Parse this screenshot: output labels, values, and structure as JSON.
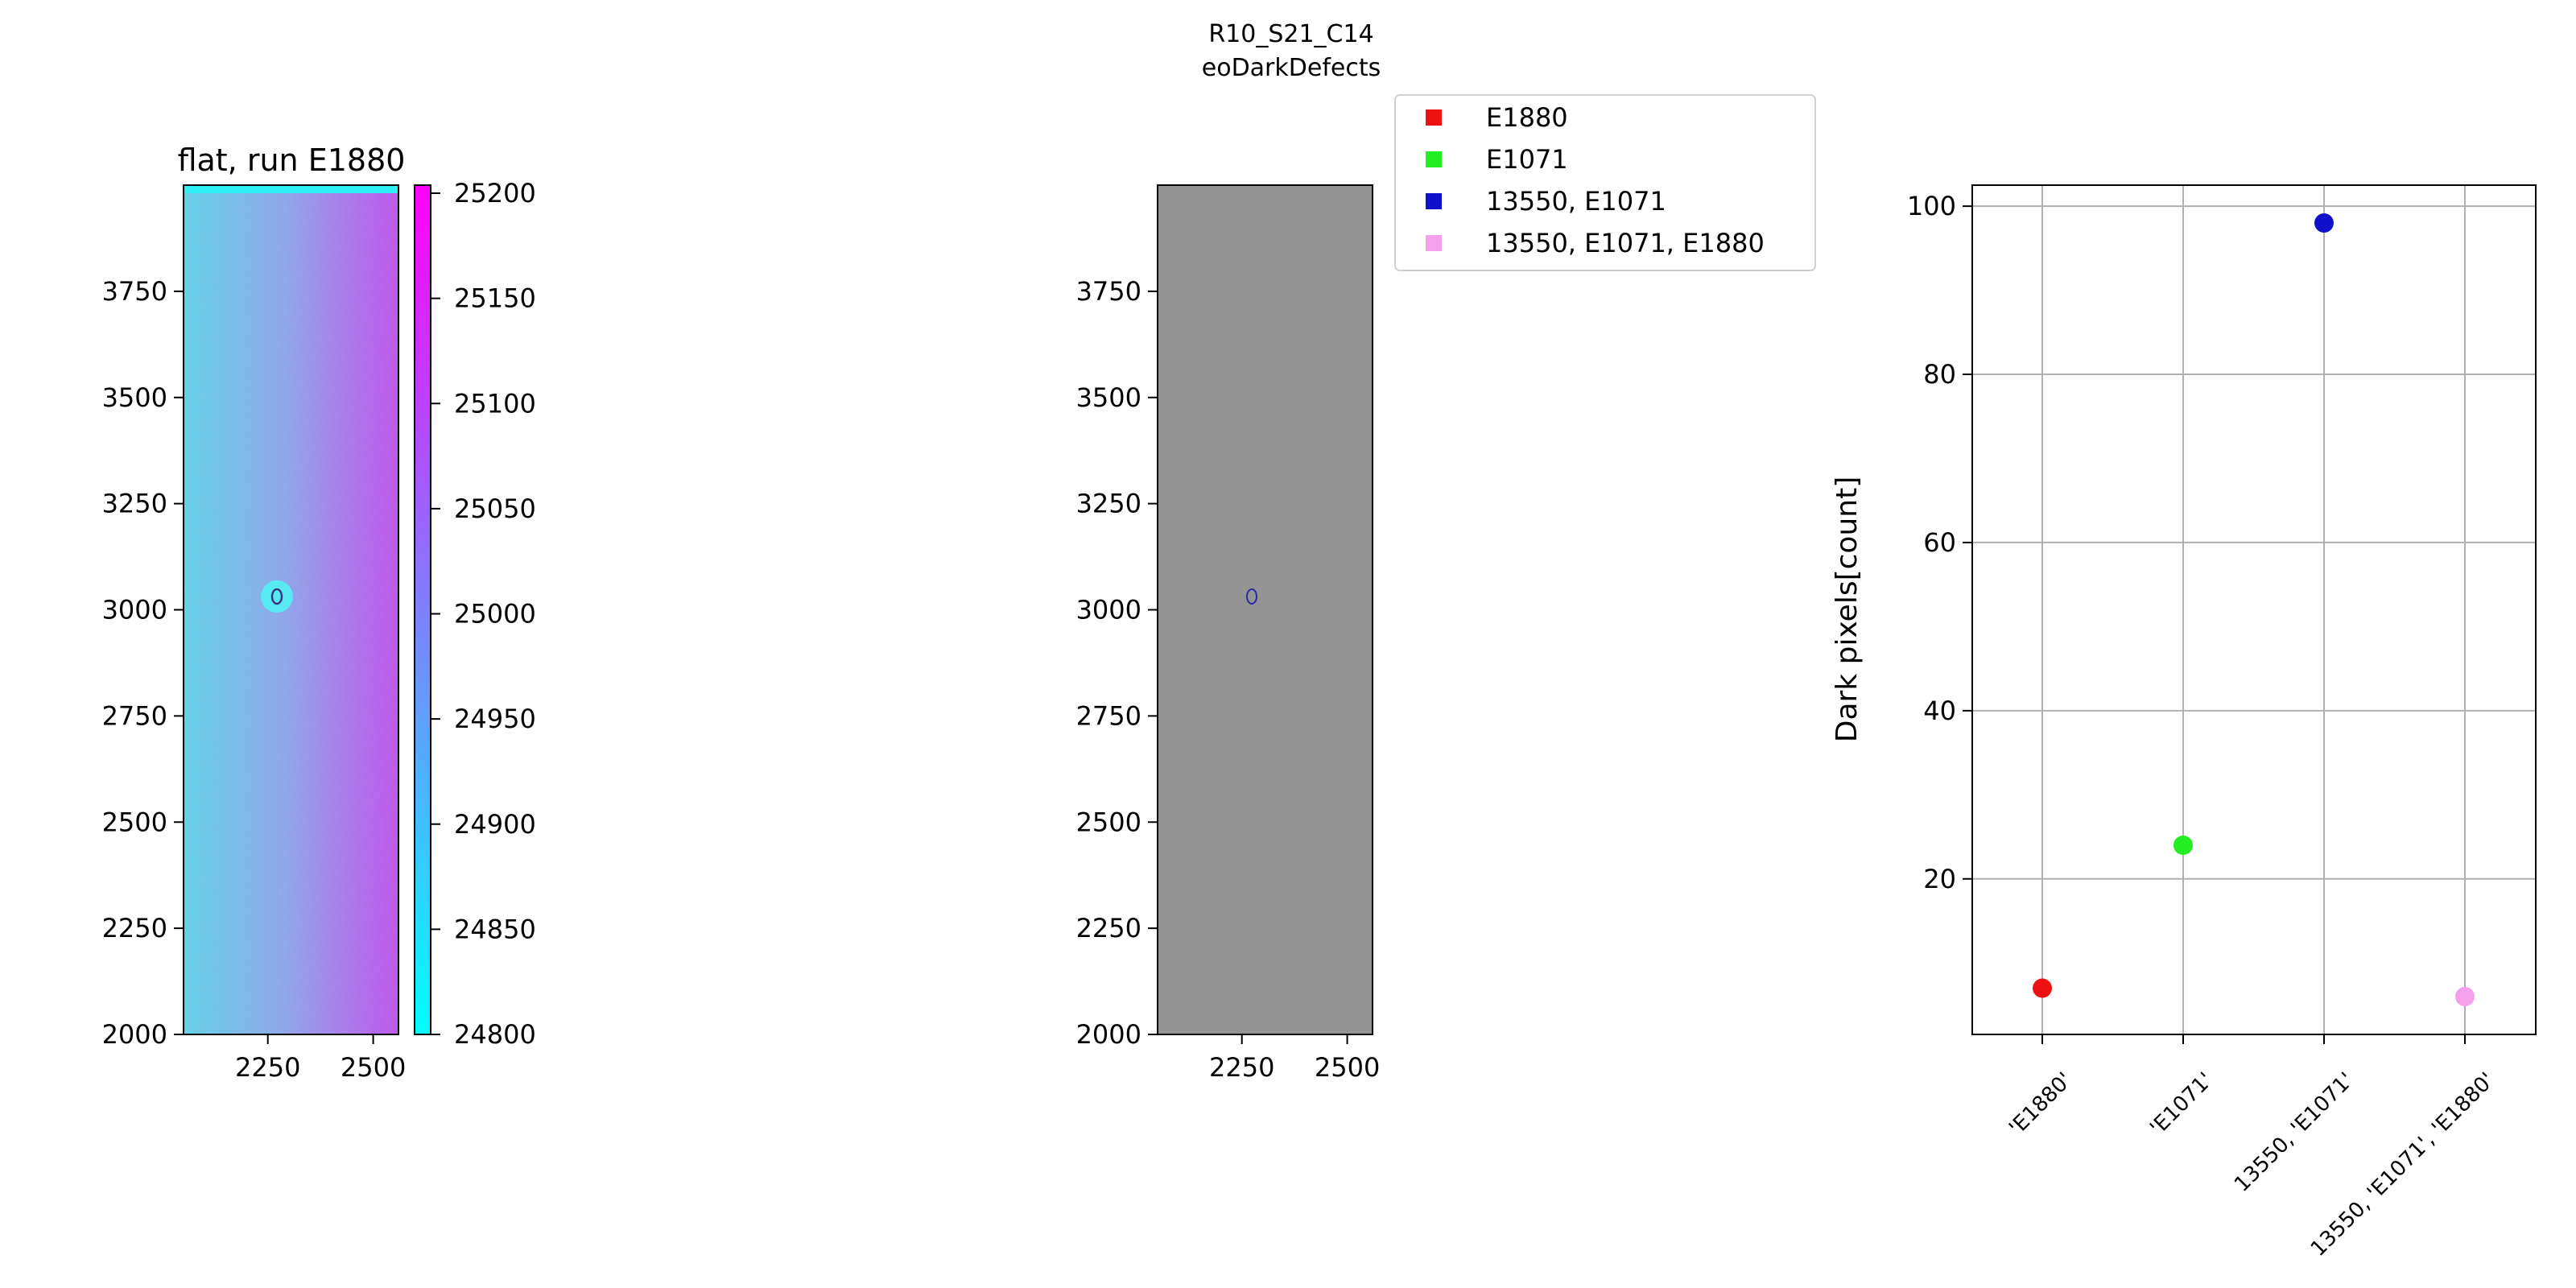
{
  "figure": {
    "title_line1": "R10_S21_C14",
    "title_line2": "eoDarkDefects"
  },
  "colors": {
    "cmap_low": "#00ffff",
    "cmap_high": "#ff00ff",
    "masked_gray": "#949494",
    "e1880": "#ee1111",
    "e1071": "#22ee22",
    "13550_e1071": "#1111cc",
    "13550_e1071_e1880": "#f4a0ea",
    "grid": "#b0b0b0"
  },
  "chart_data": [
    {
      "type": "heatmap",
      "title": "flat, run E1880",
      "xticks": [
        2250,
        2500
      ],
      "yticks": [
        2000,
        2250,
        2500,
        2750,
        3000,
        3250,
        3500,
        3750
      ],
      "xlim": [
        2050,
        2560
      ],
      "ylim": [
        2000,
        4000
      ],
      "colorbar": {
        "ticks": [
          24800,
          24850,
          24900,
          24950,
          25000,
          25050,
          25100,
          25150,
          25200
        ],
        "range": [
          24800,
          25200
        ],
        "colormap": "cool"
      },
      "feature": "dust ring near x=2270, y=3040"
    },
    {
      "type": "heatmap",
      "title": "",
      "xticks": [
        2250,
        2500
      ],
      "yticks": [
        2000,
        2250,
        2500,
        2750,
        3000,
        3250,
        3500,
        3750
      ],
      "xlim": [
        2050,
        2560
      ],
      "ylim": [
        2000,
        4000
      ],
      "feature": "dark-defect ring near x=2270, y=3040",
      "legend": {
        "placement": "top-right",
        "entries": [
          {
            "label": "E1880",
            "color_key": "e1880"
          },
          {
            "label": "E1071",
            "color_key": "e1071"
          },
          {
            "label": "13550, E1071",
            "color_key": "13550_e1071"
          },
          {
            "label": "13550, E1071, E1880",
            "color_key": "13550_e1071_e1880"
          }
        ]
      }
    },
    {
      "type": "scatter",
      "title": "",
      "ylabel": "Dark pixels[count]",
      "xlabel": "",
      "categories": [
        "'E1880'",
        "'E1071'",
        "13550, 'E1071'",
        "13550, 'E1071', 'E1880'"
      ],
      "values": [
        7,
        24,
        98,
        6
      ],
      "color_keys": [
        "e1880",
        "e1071",
        "13550_e1071",
        "13550_e1071_e1880"
      ],
      "yticks": [
        20,
        40,
        60,
        80,
        100
      ],
      "ylim": [
        1.5,
        102.5
      ],
      "grid": true
    }
  ]
}
